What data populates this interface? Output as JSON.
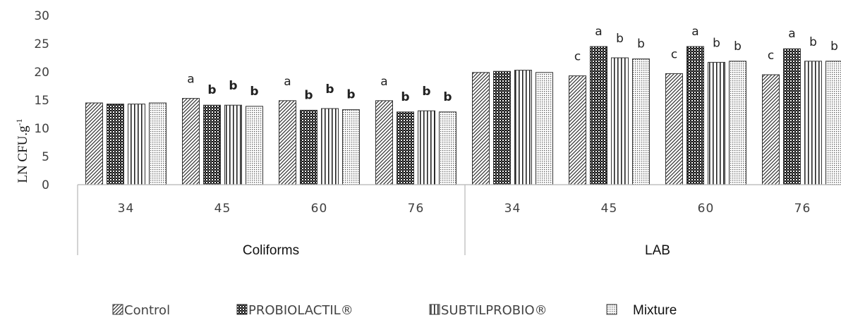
{
  "chart_data": {
    "type": "bar",
    "ylabel": "LN CFU.g",
    "ylabel_sup": "-1",
    "ylim": [
      0,
      30
    ],
    "yticks": [
      "0",
      "5",
      "10",
      "15",
      "20",
      "25",
      "30"
    ],
    "grid": false,
    "legend_position": "bottom",
    "groups": [
      {
        "name": "Coliforms",
        "categories": [
          "34",
          "45",
          "60",
          "76"
        ]
      },
      {
        "name": "LAB",
        "categories": [
          "34",
          "45",
          "60",
          "76"
        ]
      }
    ],
    "categories": [
      "34",
      "45",
      "60",
      "76",
      "34",
      "45",
      "60",
      "76"
    ],
    "series": [
      {
        "name": "Control",
        "pattern": "diagonal",
        "values": [
          14.5,
          15.3,
          14.9,
          14.9,
          19.9,
          19.3,
          19.7,
          19.5
        ],
        "labels": [
          "",
          "a",
          "a",
          "a",
          "",
          "c",
          "c",
          "c"
        ]
      },
      {
        "name": "PROBIOLACTIL®",
        "pattern": "checker",
        "values": [
          14.3,
          14.1,
          13.2,
          12.9,
          20.1,
          24.5,
          24.5,
          24.1
        ],
        "labels": [
          "",
          "b",
          "b",
          "b",
          "",
          "a",
          "a",
          "a"
        ]
      },
      {
        "name": "SUBTILPROBIO®",
        "pattern": "vertical",
        "values": [
          14.3,
          14.1,
          13.5,
          13.1,
          20.3,
          22.5,
          21.7,
          21.9
        ],
        "labels": [
          "",
          "b",
          "b",
          "b",
          "",
          "b",
          "b",
          "b"
        ]
      },
      {
        "name": "Mixture",
        "pattern": "dots",
        "values": [
          14.5,
          13.9,
          13.3,
          12.9,
          19.9,
          22.3,
          21.9,
          21.9
        ],
        "labels": [
          "",
          "b",
          "b",
          "b",
          "",
          "b",
          "b",
          "b"
        ]
      }
    ]
  }
}
